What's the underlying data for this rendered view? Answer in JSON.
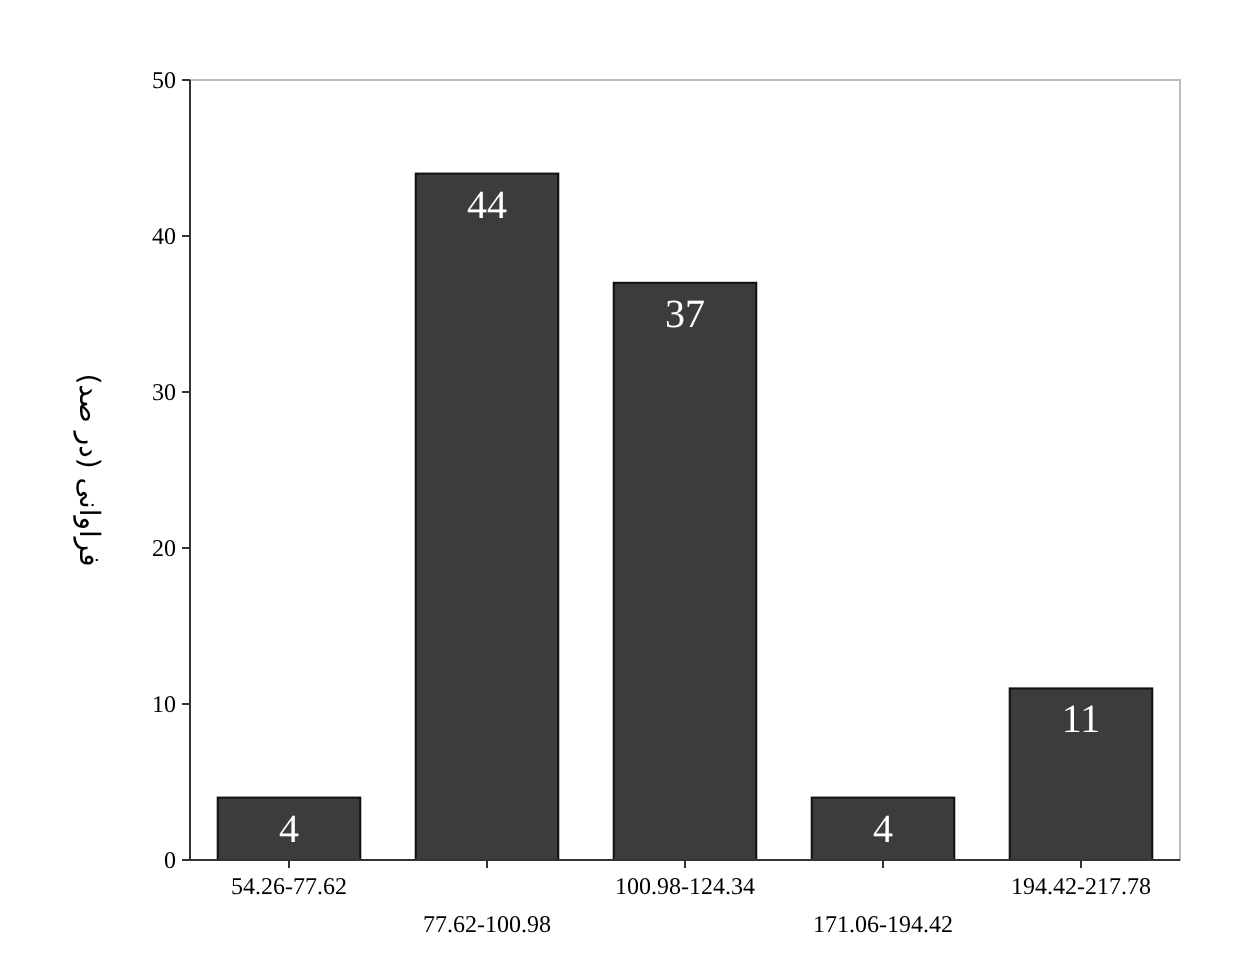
{
  "chart_data": {
    "type": "bar",
    "ylabel": "فراوانی (در صد)",
    "categories": [
      "54.26-77.62",
      "77.62-100.98",
      "100.98-124.34",
      "171.06-194.42",
      "194.42-217.78"
    ],
    "values": [
      4,
      44,
      37,
      4,
      11
    ],
    "color": "#3c3c3c",
    "ylim": [
      0,
      50
    ],
    "yticks": [
      0,
      10,
      20,
      30,
      40,
      50
    ],
    "data_labels": true,
    "grid": false
  }
}
